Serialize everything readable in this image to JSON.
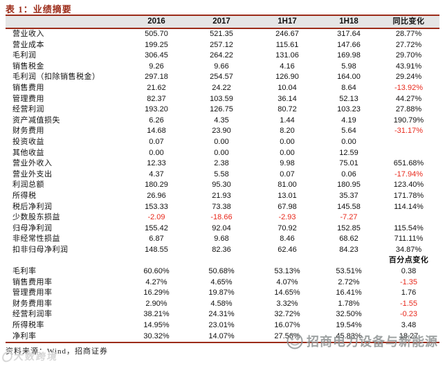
{
  "title": "表 1：业绩摘要",
  "table": {
    "columns": [
      "",
      "2016",
      "2017",
      "1H17",
      "1H18",
      "同比变化"
    ],
    "rows": [
      {
        "label": "营业收入",
        "values": [
          "505.70",
          "521.35",
          "246.67",
          "317.64",
          "28.77%"
        ]
      },
      {
        "label": "营业成本",
        "values": [
          "199.25",
          "257.12",
          "115.61",
          "147.66",
          "27.72%"
        ]
      },
      {
        "label": "毛利润",
        "values": [
          "306.45",
          "264.22",
          "131.06",
          "169.98",
          "29.70%"
        ]
      },
      {
        "label": "销售税金",
        "values": [
          "9.26",
          "9.66",
          "4.16",
          "5.98",
          "43.91%"
        ]
      },
      {
        "label": "毛利润（扣除销售税金）",
        "values": [
          "297.18",
          "254.57",
          "126.90",
          "164.00",
          "29.24%"
        ]
      },
      {
        "label": "销售费用",
        "values": [
          "21.62",
          "24.22",
          "10.04",
          "8.64",
          "-13.92%"
        ]
      },
      {
        "label": "管理费用",
        "values": [
          "82.37",
          "103.59",
          "36.14",
          "52.13",
          "44.27%"
        ]
      },
      {
        "label": "经营利润",
        "values": [
          "193.20",
          "126.75",
          "80.72",
          "103.23",
          "27.88%"
        ]
      },
      {
        "label": "资产减值损失",
        "values": [
          "6.26",
          "4.35",
          "1.44",
          "4.19",
          "190.79%"
        ]
      },
      {
        "label": "财务费用",
        "values": [
          "14.68",
          "23.90",
          "8.20",
          "5.64",
          "-31.17%"
        ]
      },
      {
        "label": "投资收益",
        "values": [
          "0.07",
          "0.00",
          "0.00",
          "0.00",
          ""
        ]
      },
      {
        "label": "其他收益",
        "values": [
          "0.00",
          "0.00",
          "0.00",
          "12.59",
          ""
        ]
      },
      {
        "label": "营业外收入",
        "values": [
          "12.33",
          "2.38",
          "9.98",
          "75.01",
          "651.68%"
        ]
      },
      {
        "label": "营业外支出",
        "values": [
          "4.37",
          "5.58",
          "0.07",
          "0.06",
          "-17.94%"
        ]
      },
      {
        "label": "利润总额",
        "values": [
          "180.29",
          "95.30",
          "81.00",
          "180.95",
          "123.40%"
        ]
      },
      {
        "label": "所得税",
        "values": [
          "26.96",
          "21.93",
          "13.01",
          "35.37",
          "171.78%"
        ]
      },
      {
        "label": "税后净利润",
        "values": [
          "153.33",
          "73.38",
          "67.98",
          "145.58",
          "114.14%"
        ]
      },
      {
        "label": "少数股东损益",
        "values": [
          "-2.09",
          "-18.66",
          "-2.93",
          "-7.27",
          ""
        ]
      },
      {
        "label": "归母净利润",
        "values": [
          "155.42",
          "92.04",
          "70.92",
          "152.85",
          "115.54%"
        ]
      },
      {
        "label": "非经常性损益",
        "values": [
          "6.87",
          "9.68",
          "8.46",
          "68.62",
          "711.11%"
        ]
      },
      {
        "label": "扣非归母净利润",
        "values": [
          "148.55",
          "82.36",
          "62.46",
          "84.23",
          "34.87%"
        ]
      },
      {
        "label": "",
        "values": [
          "",
          "",
          "",
          "",
          "百分点变化"
        ],
        "subhead": true
      },
      {
        "label": "毛利率",
        "values": [
          "60.60%",
          "50.68%",
          "53.13%",
          "53.51%",
          "0.38"
        ]
      },
      {
        "label": "销售费用率",
        "values": [
          "4.27%",
          "4.65%",
          "4.07%",
          "2.72%",
          "-1.35"
        ]
      },
      {
        "label": "管理费用率",
        "values": [
          "16.29%",
          "19.87%",
          "14.65%",
          "16.41%",
          "1.76"
        ]
      },
      {
        "label": "财务费用率",
        "values": [
          "2.90%",
          "4.58%",
          "3.32%",
          "1.78%",
          "-1.55"
        ]
      },
      {
        "label": "经营利润率",
        "values": [
          "38.21%",
          "24.31%",
          "32.72%",
          "32.50%",
          "-0.23"
        ]
      },
      {
        "label": "所得税率",
        "values": [
          "14.95%",
          "23.01%",
          "16.07%",
          "19.54%",
          "3.48"
        ]
      },
      {
        "label": "净利率",
        "values": [
          "30.32%",
          "14.07%",
          "27.56%",
          "45.83%",
          "18.27"
        ]
      }
    ]
  },
  "footer": {
    "source": "资料来源：Wind，招商证券"
  },
  "watermarks": {
    "bottom_left": "大数跨境",
    "bottom_right": "招商电力设备与新能源"
  },
  "colors": {
    "accent_line": "#9c2c19",
    "negative": "#e8281b",
    "header_bg": "#e5e5e5",
    "watermark_grey": "#8e9394"
  }
}
